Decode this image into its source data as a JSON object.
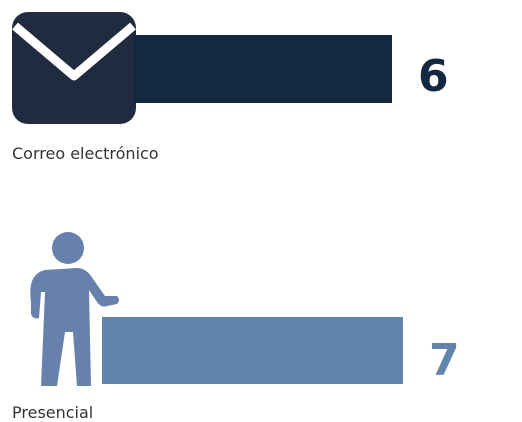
{
  "chart_data": {
    "type": "bar",
    "orientation": "horizontal",
    "categories": [
      "Correo electrónico",
      "Presencial"
    ],
    "values": [
      6,
      7
    ],
    "value_labels": [
      "6",
      "7"
    ],
    "icons": [
      "envelope-icon",
      "person-icon"
    ],
    "colors": [
      "#14283f",
      "#6283ab"
    ],
    "legend": "none",
    "grid": false
  }
}
